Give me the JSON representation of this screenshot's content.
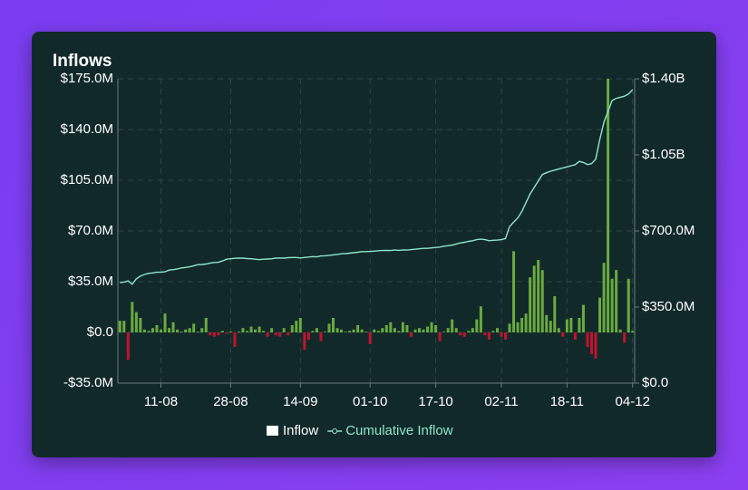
{
  "chart_data": {
    "type": "bar",
    "title": "Inflows",
    "categories": [
      null,
      null,
      null,
      null,
      null,
      null,
      null,
      null,
      null,
      null,
      "11-08",
      null,
      null,
      null,
      null,
      null,
      null,
      null,
      null,
      null,
      null,
      null,
      null,
      null,
      null,
      null,
      null,
      "28-08",
      null,
      null,
      null,
      null,
      null,
      null,
      null,
      null,
      null,
      null,
      null,
      null,
      null,
      null,
      null,
      null,
      "14-09",
      null,
      null,
      null,
      null,
      null,
      null,
      null,
      null,
      null,
      null,
      null,
      null,
      null,
      null,
      null,
      null,
      "01-10",
      null,
      null,
      null,
      null,
      null,
      null,
      null,
      null,
      null,
      null,
      null,
      null,
      null,
      null,
      null,
      "17-10",
      null,
      null,
      null,
      null,
      null,
      null,
      null,
      null,
      null,
      null,
      null,
      null,
      null,
      null,
      null,
      "02-11",
      null,
      null,
      null,
      null,
      null,
      null,
      null,
      null,
      null,
      null,
      null,
      null,
      null,
      null,
      null,
      "18-11",
      null,
      null,
      null,
      null,
      null,
      null,
      null,
      null,
      null,
      null,
      null,
      null,
      null,
      null,
      null,
      "04-12"
    ],
    "series": [
      {
        "name": "Inflow",
        "type": "bar",
        "color": "#6aab3e",
        "negative_color": "#c3132c",
        "legend_color": "#ffffff",
        "values": [
          8,
          8,
          -19,
          21,
          14,
          10,
          2,
          1,
          3,
          5,
          2,
          13,
          3,
          7,
          2,
          0.5,
          2,
          3,
          6,
          0.5,
          3,
          10,
          -2,
          -3,
          -2,
          1,
          -1,
          0.5,
          -10,
          0.5,
          3,
          1,
          4,
          2,
          4,
          1,
          -3,
          3,
          -2,
          -3,
          3,
          -2,
          5,
          8,
          10,
          -12,
          -5,
          1,
          3,
          -6,
          0.5,
          6,
          10,
          3,
          2,
          0.5,
          1,
          2,
          5,
          2,
          0.5,
          -8,
          2,
          1,
          3,
          5,
          7,
          3,
          1,
          7,
          5,
          -3,
          2,
          3,
          2,
          4,
          7,
          5,
          -6,
          0.5,
          3,
          9,
          3,
          -2,
          -3,
          1,
          3,
          9,
          18,
          -2,
          -5,
          1,
          3,
          -3,
          -5,
          6,
          56,
          7,
          10,
          13,
          38,
          46,
          50,
          43,
          12,
          8,
          25,
          3,
          -3,
          9,
          10,
          -5,
          10,
          19,
          -10,
          -15,
          -18,
          24,
          48,
          175,
          37,
          43,
          2,
          -7,
          37,
          1
        ]
      },
      {
        "name": "Cumulative Inflow",
        "type": "line",
        "axis": "y2",
        "color": "#8ee6c8",
        "values": [
          462,
          465,
          470,
          455,
          480,
          492,
          500,
          505,
          507,
          510,
          511,
          512,
          520,
          522,
          525,
          530,
          532,
          535,
          540,
          545,
          546,
          548,
          552,
          555,
          556,
          562,
          570,
          572,
          574,
          575,
          575,
          573,
          572,
          570,
          568,
          570,
          571,
          572,
          575,
          576,
          575,
          577,
          578,
          578,
          576,
          578,
          580,
          582,
          581,
          585,
          586,
          588,
          590,
          592,
          595,
          596,
          598,
          600,
          602,
          605,
          605,
          606,
          607,
          609,
          610,
          611,
          610,
          612,
          611,
          613,
          612,
          614,
          616,
          618,
          620,
          620,
          622,
          624,
          626,
          630,
          632,
          635,
          640,
          645,
          648,
          652,
          655,
          660,
          662,
          660,
          655,
          657,
          658,
          660,
          665,
          720,
          740,
          760,
          790,
          830,
          870,
          900,
          930,
          960,
          968,
          975,
          980,
          985,
          990,
          995,
          1000,
          1005,
          1020,
          1015,
          1005,
          1010,
          1030,
          1120,
          1200,
          1250,
          1300,
          1310,
          1315,
          1320,
          1330,
          1350
        ]
      }
    ],
    "ylim": [
      -35,
      175
    ],
    "yticks": [
      {
        "value": -35,
        "label": "-$35.0M"
      },
      {
        "value": 0,
        "label": "$0.0"
      },
      {
        "value": 35,
        "label": "$35.0M"
      },
      {
        "value": 70,
        "label": "$70.0M"
      },
      {
        "value": 105,
        "label": "$105.0M"
      },
      {
        "value": 140,
        "label": "$140.0M"
      },
      {
        "value": 175,
        "label": "$175.0M"
      }
    ],
    "y2lim": [
      0,
      1400
    ],
    "y2ticks": [
      {
        "value": 0,
        "label": "$0.0"
      },
      {
        "value": 350,
        "label": "$350.0M"
      },
      {
        "value": 700,
        "label": "$700.0M"
      },
      {
        "value": 1050,
        "label": "$1.05B"
      },
      {
        "value": 1400,
        "label": "$1.40B"
      }
    ],
    "grid": true
  }
}
